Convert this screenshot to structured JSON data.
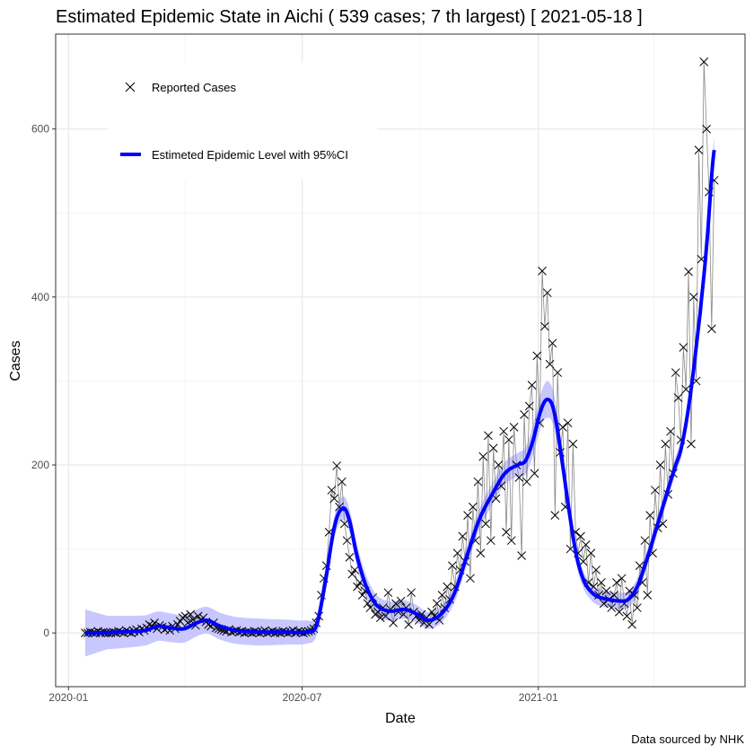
{
  "chart_data": {
    "type": "line",
    "title": "Estimated Epidemic State in Aichi  ( 539 cases; 7 th largest) [ 2021-05-18 ]",
    "xlabel": "Date",
    "ylabel": "Cases",
    "caption": "Data sourced by NHK",
    "x_origin_date": "2020-01-01",
    "x_unit": "days since 2020-01-01",
    "xlim": [
      -10,
      527
    ],
    "ylim": [
      -64,
      713
    ],
    "x_ticks": [
      {
        "day": 0,
        "label": "2020-01"
      },
      {
        "day": 182,
        "label": "2020-07"
      },
      {
        "day": 366,
        "label": "2021-01"
      }
    ],
    "x_minor_ticks": [
      91,
      274,
      456
    ],
    "y_ticks": [
      {
        "value": 0,
        "label": "0"
      },
      {
        "value": 200,
        "label": "200"
      },
      {
        "value": 400,
        "label": "400"
      },
      {
        "value": 600,
        "label": "600"
      }
    ],
    "y_minor_ticks": [
      100,
      300,
      500
    ],
    "grid": true,
    "legend": {
      "position": "top-left",
      "entries": [
        {
          "label": "Reported Cases",
          "marker": "x",
          "color": "#000000"
        },
        {
          "label": "Estimeted Epidemic Level with 95%CI",
          "marker": "line",
          "color": "#0000ff"
        }
      ]
    },
    "series": [
      {
        "name": "Reported Cases",
        "start_day": 13,
        "step_days": 2,
        "color": "#000000",
        "line_color": "#888888",
        "values": [
          0,
          0,
          1,
          0,
          0,
          2,
          0,
          1,
          0,
          0,
          0,
          1,
          0,
          2,
          1,
          0,
          3,
          1,
          0,
          2,
          4,
          1,
          5,
          3,
          6,
          10,
          8,
          12,
          5,
          9,
          7,
          4,
          6,
          3,
          8,
          5,
          10,
          14,
          18,
          20,
          12,
          22,
          16,
          9,
          20,
          15,
          18,
          13,
          10,
          8,
          12,
          6,
          5,
          4,
          3,
          2,
          4,
          1,
          2,
          3,
          1,
          2,
          0,
          1,
          1,
          0,
          2,
          1,
          0,
          1,
          3,
          0,
          1,
          2,
          0,
          1,
          0,
          2,
          1,
          0,
          1,
          3,
          0,
          2,
          1,
          0,
          1,
          2,
          3,
          5,
          12,
          20,
          45,
          65,
          80,
          120,
          170,
          160,
          199,
          150,
          180,
          130,
          110,
          90,
          70,
          75,
          55,
          60,
          45,
          50,
          35,
          30,
          42,
          22,
          25,
          18,
          30,
          20,
          48,
          28,
          12,
          35,
          25,
          38,
          22,
          30,
          10,
          48,
          25,
          20,
          15,
          22,
          12,
          18,
          10,
          25,
          20,
          35,
          15,
          45,
          30,
          55,
          40,
          80,
          55,
          95,
          75,
          115,
          85,
          140,
          65,
          150,
          110,
          180,
          95,
          210,
          130,
          235,
          110,
          220,
          160,
          200,
          175,
          240,
          120,
          230,
          110,
          245,
          200,
          185,
          92,
          260,
          180,
          270,
          295,
          190,
          330,
          250,
          431,
          365,
          405,
          320,
          345,
          140,
          310,
          215,
          245,
          150,
          250,
          100,
          225,
          120,
          95,
          115,
          85,
          105,
          60,
          95,
          55,
          75,
          45,
          60,
          35,
          50,
          40,
          30,
          45,
          60,
          25,
          65,
          35,
          20,
          50,
          10,
          45,
          30,
          80,
          60,
          110,
          45,
          140,
          95,
          170,
          125,
          200,
          130,
          225,
          165,
          240,
          190,
          310,
          280,
          230,
          340,
          290,
          430,
          225,
          400,
          300,
          575,
          445,
          680,
          600,
          525,
          362,
          539
        ]
      },
      {
        "name": "Estimeted Epidemic Level with 95%CI",
        "color": "#0000ff",
        "ci_color": "#c8c8ff",
        "points": [
          [
            13,
            0
          ],
          [
            40,
            1
          ],
          [
            60,
            3
          ],
          [
            70,
            8
          ],
          [
            80,
            6
          ],
          [
            90,
            5
          ],
          [
            100,
            12
          ],
          [
            108,
            15
          ],
          [
            118,
            8
          ],
          [
            130,
            3
          ],
          [
            150,
            1
          ],
          [
            170,
            1
          ],
          [
            185,
            1
          ],
          [
            193,
            8
          ],
          [
            200,
            60
          ],
          [
            207,
            125
          ],
          [
            213,
            148
          ],
          [
            218,
            138
          ],
          [
            225,
            90
          ],
          [
            232,
            55
          ],
          [
            240,
            33
          ],
          [
            250,
            26
          ],
          [
            262,
            28
          ],
          [
            272,
            22
          ],
          [
            280,
            15
          ],
          [
            290,
            22
          ],
          [
            300,
            45
          ],
          [
            310,
            90
          ],
          [
            320,
            135
          ],
          [
            330,
            165
          ],
          [
            340,
            190
          ],
          [
            350,
            200
          ],
          [
            356,
            205
          ],
          [
            362,
            230
          ],
          [
            368,
            265
          ],
          [
            373,
            278
          ],
          [
            378,
            265
          ],
          [
            384,
            210
          ],
          [
            390,
            145
          ],
          [
            396,
            90
          ],
          [
            402,
            60
          ],
          [
            410,
            45
          ],
          [
            420,
            40
          ],
          [
            430,
            38
          ],
          [
            436,
            40
          ],
          [
            443,
            55
          ],
          [
            450,
            85
          ],
          [
            457,
            120
          ],
          [
            465,
            160
          ],
          [
            472,
            195
          ],
          [
            478,
            225
          ],
          [
            485,
            290
          ],
          [
            492,
            380
          ],
          [
            497,
            460
          ],
          [
            503,
            575
          ]
        ],
        "ci_halfwidth": [
          [
            13,
            28
          ],
          [
            30,
            20
          ],
          [
            60,
            18
          ],
          [
            100,
            16
          ],
          [
            150,
            16
          ],
          [
            185,
            14
          ],
          [
            193,
            12
          ],
          [
            213,
            14
          ],
          [
            240,
            12
          ],
          [
            280,
            10
          ],
          [
            320,
            12
          ],
          [
            350,
            14
          ],
          [
            373,
            22
          ],
          [
            400,
            10
          ],
          [
            436,
            10
          ],
          [
            470,
            10
          ],
          [
            503,
            14
          ]
        ]
      }
    ]
  }
}
